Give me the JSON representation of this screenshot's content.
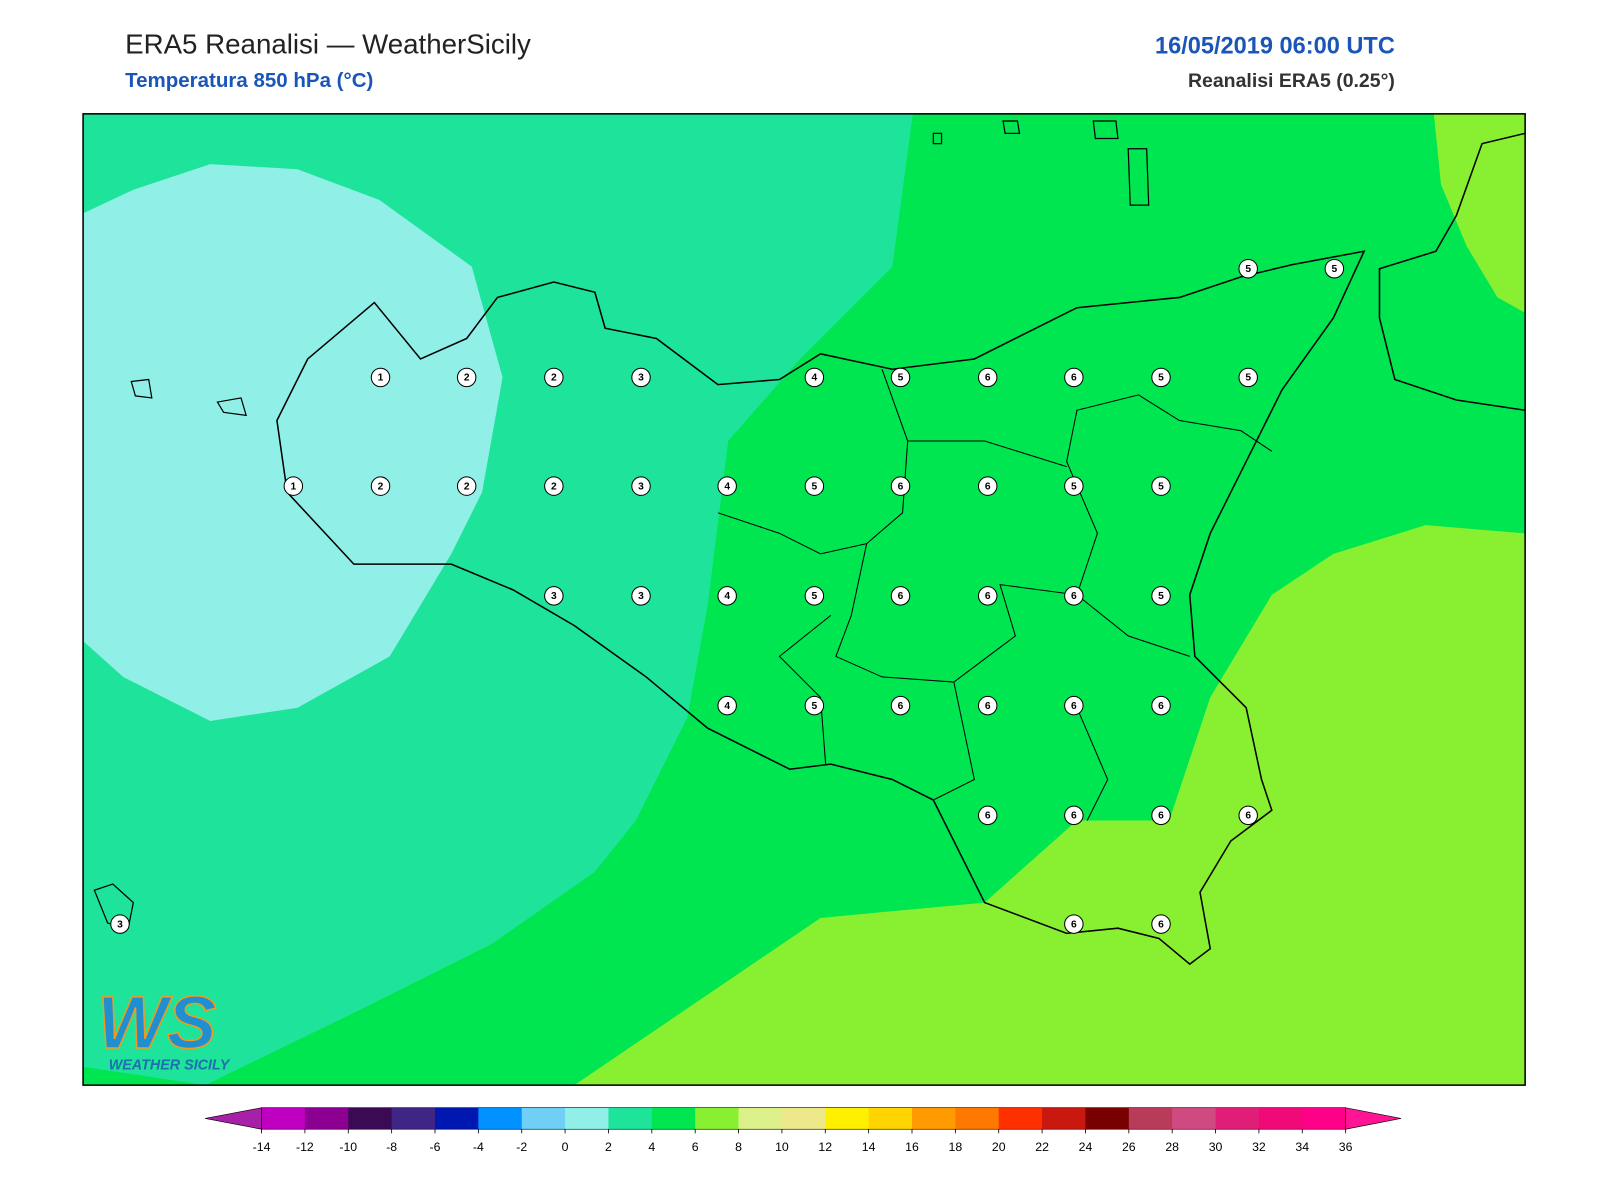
{
  "header": {
    "title": "ERA5 Reanalisi — WeatherSicily",
    "subtitle": "Temperatura 850 hPa (°C)",
    "datetime": "16/05/2019 06:00 UTC",
    "source": "Reanalisi ERA5 (0.25°)"
  },
  "map": {
    "points": [
      1,
      2,
      2,
      3,
      4,
      5,
      6,
      6,
      5,
      5,
      5,
      5,
      1,
      2,
      2,
      2,
      3,
      4,
      5,
      6,
      6,
      5,
      5,
      3,
      3,
      4,
      5,
      6,
      6,
      6,
      5,
      4,
      5,
      6,
      6,
      6,
      6,
      6,
      6,
      6,
      6,
      3,
      6,
      6
    ]
  },
  "logo": {
    "mark": "WS",
    "text": "WEATHER SICILY"
  },
  "colorbar": {
    "ticks": [
      -14,
      -12,
      -10,
      -8,
      -6,
      -4,
      -2,
      0,
      2,
      4,
      6,
      8,
      10,
      12,
      14,
      16,
      18,
      20,
      22,
      24,
      26,
      28,
      30,
      32,
      34,
      36
    ],
    "under_color": "#a81fa8",
    "over_color": "#ff1493",
    "colors": [
      "#c000c0",
      "#8b0090",
      "#3a0a55",
      "#3f2585",
      "#0018b0",
      "#0090ff",
      "#6fcff5",
      "#90f0e8",
      "#1ee39a",
      "#00e650",
      "#88f030",
      "#dcf08a",
      "#ece88a",
      "#fff000",
      "#ffd400",
      "#ff9a00",
      "#ff7800",
      "#ff3000",
      "#c81810",
      "#780000",
      "#b83c5a",
      "#d04a82",
      "#e01e78",
      "#f00a78",
      "#ff0088"
    ]
  }
}
